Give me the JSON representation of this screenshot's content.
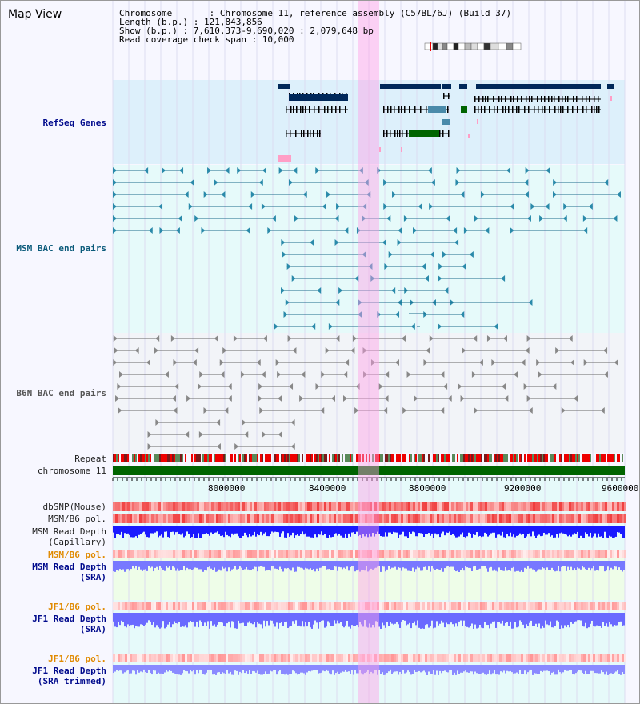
{
  "page": {
    "title": "Map View"
  },
  "info": {
    "lines": [
      "Chromosome       : Chromosome 11, reference assembly (C57BL/6J) (Build 37)",
      "Length (b.p.) : 121,843,856",
      "Show (b.p.) : 7,610,373-9,690,020 : 2,079,648 bp",
      "Read coverage check span : 10,000"
    ]
  },
  "tracks": {
    "refseq": "RefSeq Genes",
    "msm_bac": "MSM BAC end pairs",
    "b6n_bac": "B6N BAC end pairs",
    "repeat": "Repeat",
    "chromosome": "chromosome 11",
    "dbsnp": "dbSNP(Mouse)",
    "msm_b6_pol_1": "MSM/B6 pol.",
    "msm_read_depth_cap_1": "MSM Read Depth",
    "msm_read_depth_cap_2": "(Capillary)",
    "msm_b6_pol_2": "MSM/B6 pol.",
    "msm_read_depth_sra_1": "MSM Read Depth",
    "msm_read_depth_sra_2": "(SRA)",
    "jf1_b6_pol_1": "JF1/B6 pol.",
    "jf1_read_depth_sra_1": "JF1 Read Depth",
    "jf1_read_depth_sra_2": "(SRA)",
    "jf1_b6_pol_2": "JF1/B6 pol.",
    "jf1_read_depth_trim_1": "JF1 Read Depth",
    "jf1_read_depth_trim_2": "(SRA trimmed)"
  },
  "axis": {
    "ticks": [
      "8000000",
      "8400000",
      "8800000",
      "9200000",
      "9600000"
    ]
  },
  "colors": {
    "navy": "#000a8c",
    "teal": "#0a5a7a",
    "highlight": "#ffb4e6",
    "refseq_bg": "#ddf0fb",
    "msm_bg": "#e6fafa",
    "b6n_bg": "#f2f4f8",
    "chromosome": "#006400",
    "depth_blue": "#1a1aff",
    "depth_light": "#7878ff"
  }
}
